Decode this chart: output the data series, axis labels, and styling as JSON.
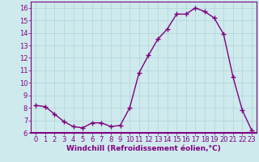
{
  "x": [
    0,
    1,
    2,
    3,
    4,
    5,
    6,
    7,
    8,
    9,
    10,
    11,
    12,
    13,
    14,
    15,
    16,
    17,
    18,
    19,
    20,
    21,
    22,
    23
  ],
  "y": [
    8.2,
    8.1,
    7.5,
    6.9,
    6.5,
    6.4,
    6.8,
    6.8,
    6.5,
    6.6,
    8.0,
    10.8,
    12.2,
    13.5,
    14.3,
    15.5,
    15.5,
    16.0,
    15.7,
    15.2,
    13.9,
    10.5,
    7.8,
    6.2
  ],
  "line_color": "#800080",
  "marker": "+",
  "markersize": 4,
  "linewidth": 1.0,
  "markeredgewidth": 1.0,
  "xlabel": "Windchill (Refroidissement éolien,°C)",
  "xlabel_fontsize": 6.5,
  "xlim": [
    -0.5,
    23.5
  ],
  "ylim": [
    6,
    16.5
  ],
  "yticks": [
    6,
    7,
    8,
    9,
    10,
    11,
    12,
    13,
    14,
    15,
    16
  ],
  "xticks": [
    0,
    1,
    2,
    3,
    4,
    5,
    6,
    7,
    8,
    9,
    10,
    11,
    12,
    13,
    14,
    15,
    16,
    17,
    18,
    19,
    20,
    21,
    22,
    23
  ],
  "tick_fontsize": 6.0,
  "background_color": "#ceeaed",
  "grid_color": "#afd4d8",
  "spine_color": "#800080"
}
